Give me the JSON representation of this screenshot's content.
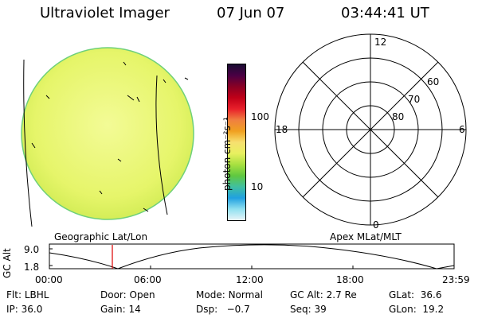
{
  "header": {
    "instrument": "Ultraviolet Imager",
    "date": "07 Jun 07",
    "time": "03:44:41 UT"
  },
  "colorbar": {
    "unit_label": "photon cm⁻²s⁻¹",
    "ticks": [
      "100",
      "10"
    ],
    "colors": [
      "#1a0d33",
      "#4a0044",
      "#8a0024",
      "#c00018",
      "#e8202a",
      "#f08040",
      "#f0a020",
      "#f7e070",
      "#e8f060",
      "#a8e040",
      "#60c840",
      "#40c0a0",
      "#20a0e0",
      "#90e0f0",
      "#e8f4f8"
    ]
  },
  "image_disk": {
    "fill_color": "#e6f56a"
  },
  "polar_plot": {
    "mlt_labels": {
      "top": "12",
      "right": "6",
      "bottom": "0",
      "left": "18"
    },
    "lat_labels": [
      "60",
      "70",
      "80"
    ]
  },
  "timeline": {
    "left_label": "Geographic Lat/Lon",
    "right_label": "Apex MLat/MLT",
    "axis_label": "GC Alt",
    "y_ticks": [
      "9.0",
      "1.8"
    ],
    "x_ticks": [
      "00:00",
      "06:00",
      "12:00",
      "18:00",
      "23:59"
    ],
    "marker_color": "#dd0000"
  },
  "footer": {
    "row1": [
      {
        "label": "Flt:",
        "value": "LBHL"
      },
      {
        "label": "Door:",
        "value": "Open"
      },
      {
        "label": "Mode:",
        "value": "Normal"
      },
      {
        "label": "GC Alt:",
        "value": "2.7 Re"
      },
      {
        "label": "GLat:",
        "value": "36.6"
      }
    ],
    "row2": [
      {
        "label": "IP:",
        "value": "36.0"
      },
      {
        "label": "Gain:",
        "value": "14"
      },
      {
        "label": "Dsp:",
        "value": "−0.7"
      },
      {
        "label": "Seq:",
        "value": "39"
      },
      {
        "label": "GLon:",
        "value": "19.2"
      }
    ]
  }
}
